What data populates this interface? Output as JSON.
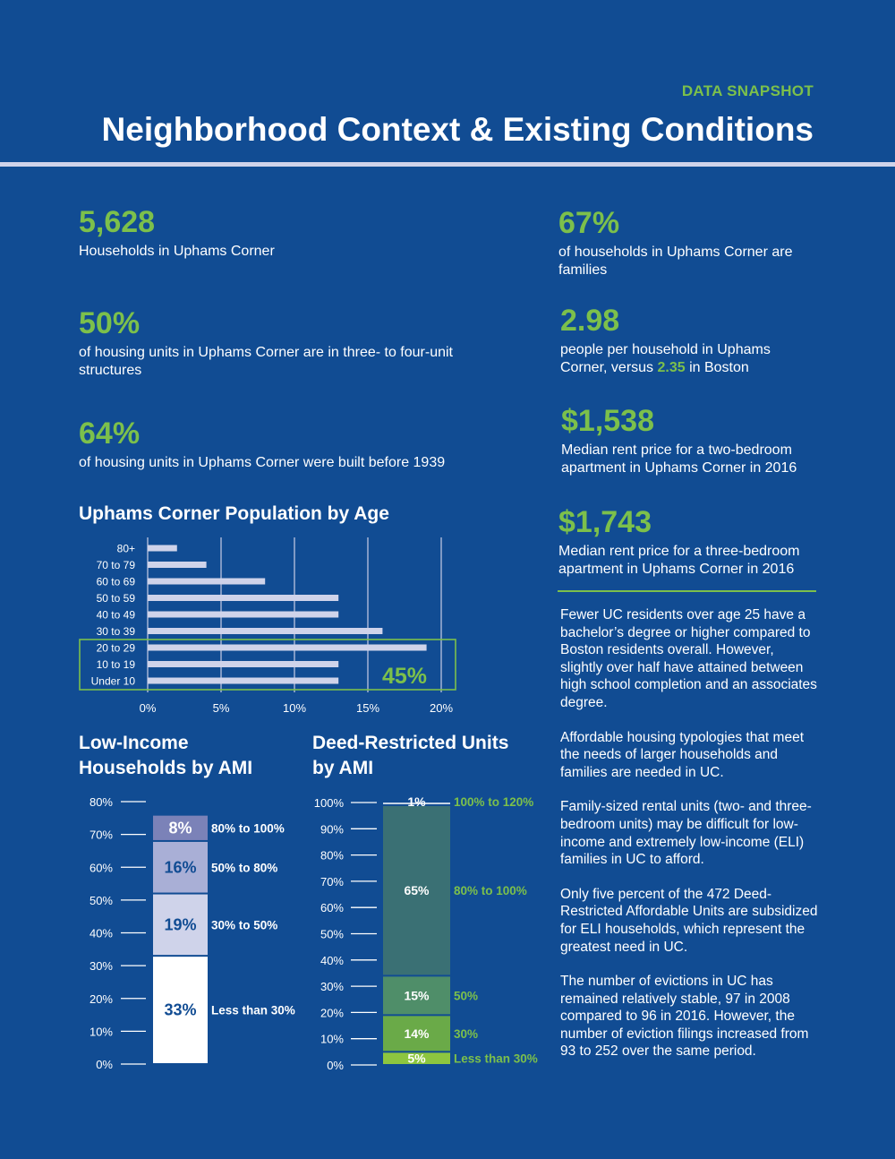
{
  "header": {
    "kicker": "DATA SNAPSHOT",
    "title": "Neighborhood Context & Existing Conditions"
  },
  "stats_left": [
    {
      "value": "5,628",
      "text": "Households in Uphams Corner"
    },
    {
      "value": "50%",
      "text": "of housing units in Uphams Corner are in three- to four-unit structures"
    },
    {
      "value": "64%",
      "text": "of housing units in Uphams Corner were built before 1939"
    }
  ],
  "stats_right": [
    {
      "value": "67%",
      "text": "of households in Uphams Corner are families"
    },
    {
      "value": "2.98",
      "text_before": "people per household in Uphams Corner, versus ",
      "highlight": "2.35",
      "text_after": " in Boston"
    },
    {
      "value": "$1,538",
      "text": "Median rent price for a two-bedroom apartment in Uphams Corner in 2016"
    },
    {
      "value": "$1,743",
      "text": "Median rent price for a three-bedroom apartment in Uphams Corner in 2016"
    }
  ],
  "paragraphs": [
    "Fewer UC residents over age 25 have a bachelor’s degree or higher compared to Boston residents overall. However, slightly over half have attained between high school completion and an associates degree.",
    "Affordable housing typologies that meet the needs of larger households and families are needed in UC.",
    "Family-sized rental units (two- and three-bedroom units) may be difficult for low-income and extremely low-income (ELI) families in UC to afford.",
    "Only five percent of the 472 Deed-Restricted Affordable Units are subsidized for ELI households, which represent the greatest need in UC.",
    "The number of evictions in UC has remained relatively stable, 97 in 2008 compared to 96 in 2016. However, the number of eviction filings increased from 93 to 252 over the same period."
  ],
  "chart_titles": {
    "age": "Uphams Corner Population by Age",
    "lowincome_line1": "Low-Income",
    "lowincome_line2": "Households by AMI",
    "deed_line1": "Deed-Restricted Units",
    "deed_line2": "by AMI"
  },
  "colors": {
    "background": "#114c93",
    "accent_green": "#7cc04b",
    "bar_lavender": "#cfd3ea"
  },
  "chart_data": [
    {
      "type": "bar",
      "orientation": "horizontal",
      "title": "Uphams Corner Population by Age",
      "categories": [
        "80+",
        "70 to 79",
        "60 to 69",
        "50 to 59",
        "40 to 49",
        "30 to 39",
        "20 to 29",
        "10 to 19",
        "Under 10"
      ],
      "values": [
        2,
        4,
        8,
        13,
        13,
        16,
        19,
        13,
        13
      ],
      "xlim": [
        0,
        20
      ],
      "xticks": [
        "0%",
        "5%",
        "10%",
        "15%",
        "20%"
      ],
      "annotation": {
        "label": "45%",
        "highlights": [
          "20 to 29",
          "10 to 19",
          "Under 10"
        ]
      }
    },
    {
      "type": "bar",
      "stacked": true,
      "title": "Low-Income Households by AMI",
      "ylim": [
        0,
        80
      ],
      "yticks": [
        "0%",
        "10%",
        "20%",
        "30%",
        "40%",
        "50%",
        "60%",
        "70%",
        "80%"
      ],
      "segments": [
        {
          "name": "Less than 30%",
          "value": 33,
          "label": "33%",
          "color": "#ffffff",
          "text_color": "#114c93"
        },
        {
          "name": "30% to 50%",
          "value": 19,
          "label": "19%",
          "color": "#cfd3ea",
          "text_color": "#114c93"
        },
        {
          "name": "50% to 80%",
          "value": 16,
          "label": "16%",
          "color": "#a9afd6",
          "text_color": "#114c93"
        },
        {
          "name": "80% to 100%",
          "value": 8,
          "label": "8%",
          "color": "#7b82b8",
          "text_color": "#ffffff"
        }
      ]
    },
    {
      "type": "bar",
      "stacked": true,
      "title": "Deed-Restricted Units by AMI",
      "ylim": [
        0,
        100
      ],
      "yticks": [
        "0%",
        "10%",
        "20%",
        "30%",
        "40%",
        "50%",
        "60%",
        "70%",
        "80%",
        "90%",
        "100%"
      ],
      "segments": [
        {
          "name": "Less than 30%",
          "value": 5,
          "label": "5%",
          "color": "#8dc63f"
        },
        {
          "name": "30%",
          "value": 14,
          "label": "14%",
          "color": "#6aaa48"
        },
        {
          "name": "50%",
          "value": 15,
          "label": "15%",
          "color": "#4f8e69"
        },
        {
          "name": "80% to 100%",
          "value": 65,
          "label": "65%",
          "color": "#3a7074"
        },
        {
          "name": "100% to 120%",
          "value": 1,
          "label": "1%",
          "color": "#16528f"
        }
      ]
    }
  ]
}
